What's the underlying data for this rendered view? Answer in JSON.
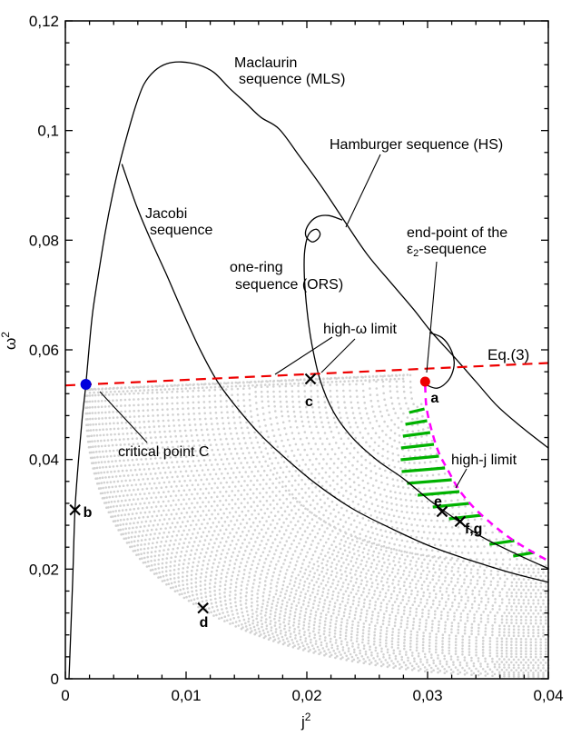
{
  "chart_data": {
    "type": "line",
    "title": "",
    "xlabel": "j",
    "xlabel_sup": "2",
    "ylabel": "ω",
    "ylabel_sup": "2",
    "xlim": [
      0,
      0.04
    ],
    "ylim": [
      0,
      0.12
    ],
    "grid": false,
    "legend_position": "none",
    "decimal_separator": ",",
    "x_ticks": {
      "values": [
        0,
        0.01,
        0.02,
        0.03,
        0.04
      ],
      "labels": [
        "0",
        "0,01",
        "0,02",
        "0,03",
        "0,04"
      ],
      "minor_step": 0.002
    },
    "y_ticks": {
      "values": [
        0,
        0.02,
        0.04,
        0.06,
        0.08,
        0.1,
        0.12
      ],
      "labels": [
        "0",
        "0,02",
        "0,04",
        "0,06",
        "0,08",
        "0,1",
        "0,12"
      ],
      "minor_step": 0.004
    },
    "colors": {
      "black_curves": "#000000",
      "eq3": "#ee0000",
      "high_j": "#ff00ff",
      "hatch": "#00b200",
      "dot_field": "#d2d2d2",
      "critical_point": "#0000dd",
      "end_point": "#ee0000"
    },
    "series": [
      {
        "id": "mls",
        "name": "Maclaurin sequence (MLS)",
        "color": "#000000",
        "style": "solid",
        "points": [
          [
            0.0003,
            0.0
          ],
          [
            0.0006,
            0.0177
          ],
          [
            0.0008,
            0.0308
          ],
          [
            0.0011,
            0.0401
          ],
          [
            0.0014,
            0.0476
          ],
          [
            0.0017,
            0.0537
          ],
          [
            0.002,
            0.0612
          ],
          [
            0.0023,
            0.0675
          ],
          [
            0.0028,
            0.0746
          ],
          [
            0.0033,
            0.0814
          ],
          [
            0.0039,
            0.0882
          ],
          [
            0.0045,
            0.094
          ],
          [
            0.0051,
            0.099
          ],
          [
            0.0058,
            0.1043
          ],
          [
            0.0065,
            0.1084
          ],
          [
            0.0074,
            0.1109
          ],
          [
            0.0084,
            0.1122
          ],
          [
            0.0096,
            0.1125
          ],
          [
            0.011,
            0.112
          ],
          [
            0.0123,
            0.1106
          ],
          [
            0.0136,
            0.1077
          ],
          [
            0.0149,
            0.1051
          ],
          [
            0.0162,
            0.1024
          ],
          [
            0.0177,
            0.1003
          ],
          [
            0.0194,
            0.0953
          ],
          [
            0.0213,
            0.0895
          ],
          [
            0.0232,
            0.0832
          ],
          [
            0.025,
            0.0774
          ],
          [
            0.0269,
            0.0724
          ],
          [
            0.0288,
            0.0675
          ],
          [
            0.0303,
            0.0633
          ],
          [
            0.0322,
            0.0587
          ],
          [
            0.034,
            0.0542
          ],
          [
            0.0358,
            0.0497
          ],
          [
            0.0379,
            0.0457
          ],
          [
            0.04,
            0.0421
          ]
        ]
      },
      {
        "id": "jacobi",
        "name": "Jacobi sequence",
        "color": "#000000",
        "style": "solid",
        "points": [
          [
            0.0047,
            0.0938
          ],
          [
            0.0059,
            0.0862
          ],
          [
            0.007,
            0.0804
          ],
          [
            0.0083,
            0.0741
          ],
          [
            0.0096,
            0.0675
          ],
          [
            0.0111,
            0.0603
          ],
          [
            0.0126,
            0.0542
          ],
          [
            0.0143,
            0.0492
          ],
          [
            0.0162,
            0.0444
          ],
          [
            0.0183,
            0.0401
          ],
          [
            0.0208,
            0.0355
          ],
          [
            0.0238,
            0.031
          ],
          [
            0.0269,
            0.0275
          ],
          [
            0.0302,
            0.0242
          ],
          [
            0.0337,
            0.0215
          ],
          [
            0.0368,
            0.0194
          ],
          [
            0.04,
            0.0176
          ]
        ]
      },
      {
        "id": "ors",
        "name": "one-ring sequence (ORS)",
        "color": "#000000",
        "style": "solid",
        "points": [
          [
            0.0229,
            0.0837
          ],
          [
            0.0218,
            0.0845
          ],
          [
            0.0208,
            0.0842
          ],
          [
            0.0201,
            0.0827
          ],
          [
            0.0199,
            0.0809
          ],
          [
            0.0204,
            0.0797
          ],
          [
            0.0209,
            0.0802
          ],
          [
            0.0211,
            0.0812
          ],
          [
            0.0208,
            0.082
          ],
          [
            0.0203,
            0.0815
          ],
          [
            0.02,
            0.0802
          ],
          [
            0.0198,
            0.0774
          ],
          [
            0.0198,
            0.0733
          ],
          [
            0.02,
            0.0675
          ],
          [
            0.0204,
            0.0612
          ],
          [
            0.0211,
            0.0545
          ],
          [
            0.0222,
            0.0487
          ],
          [
            0.0238,
            0.0439
          ],
          [
            0.0258,
            0.0399
          ],
          [
            0.028,
            0.0365
          ],
          [
            0.0302,
            0.0325
          ],
          [
            0.0322,
            0.0293
          ],
          [
            0.0344,
            0.026
          ],
          [
            0.0372,
            0.0229
          ],
          [
            0.04,
            0.0201
          ]
        ]
      },
      {
        "id": "hs_end_loop",
        "name": "Hamburger sequence (HS) terminal loop",
        "color": "#000000",
        "style": "solid",
        "points": [
          [
            0.0302,
            0.0631
          ],
          [
            0.0312,
            0.0622
          ],
          [
            0.0319,
            0.0602
          ],
          [
            0.0322,
            0.0578
          ],
          [
            0.032,
            0.0555
          ],
          [
            0.0315,
            0.0539
          ],
          [
            0.0308,
            0.053
          ],
          [
            0.0301,
            0.0534
          ],
          [
            0.0298,
            0.054
          ]
        ]
      },
      {
        "id": "eq3",
        "name": "Eq.(3)",
        "color": "#ee0000",
        "style": "dashed",
        "points": [
          [
            0.0,
            0.0535
          ],
          [
            0.04,
            0.0576
          ]
        ]
      },
      {
        "id": "high_j_limit",
        "name": "high-j limit",
        "color": "#ff00ff",
        "style": "dashed",
        "points": [
          [
            0.0298,
            0.0535
          ],
          [
            0.0299,
            0.0496
          ],
          [
            0.0303,
            0.0456
          ],
          [
            0.0309,
            0.0414
          ],
          [
            0.0317,
            0.038
          ],
          [
            0.0326,
            0.0345
          ],
          [
            0.0338,
            0.0313
          ],
          [
            0.0353,
            0.0283
          ],
          [
            0.0368,
            0.0257
          ],
          [
            0.0384,
            0.0235
          ],
          [
            0.04,
            0.0215
          ]
        ]
      }
    ],
    "markers": [
      {
        "id": "C",
        "label": "",
        "name": "critical point C",
        "shape": "dot",
        "color": "#0000dd",
        "x": 0.0017,
        "y": 0.0537
      },
      {
        "id": "a",
        "label": "a",
        "name": "end-point of the ε2-sequence",
        "shape": "dot",
        "color": "#ee0000",
        "x": 0.0298,
        "y": 0.0542
      },
      {
        "id": "b",
        "label": "b",
        "name": "configuration b",
        "shape": "cross",
        "color": "#000000",
        "x": 0.0008,
        "y": 0.0308
      },
      {
        "id": "c",
        "label": "c",
        "name": "configuration c",
        "shape": "cross",
        "color": "#000000",
        "x": 0.0203,
        "y": 0.0547
      },
      {
        "id": "d",
        "label": "d",
        "name": "configuration d",
        "shape": "cross",
        "color": "#000000",
        "x": 0.0114,
        "y": 0.0129
      },
      {
        "id": "e",
        "label": "e",
        "name": "configuration e",
        "shape": "cross",
        "color": "#000000",
        "x": 0.0312,
        "y": 0.0305
      },
      {
        "id": "fg",
        "label": "f,g",
        "name": "configurations f and g",
        "shape": "cross",
        "color": "#000000",
        "x": 0.0327,
        "y": 0.0287
      }
    ],
    "annotations": {
      "maclaurin_l1": "Maclaurin",
      "maclaurin_l2": "sequence (MLS)",
      "hamburger": "Hamburger sequence (HS)",
      "jacobi_l1": "Jacobi",
      "jacobi_l2": "sequence",
      "ors_l1": "one-ring",
      "ors_l2": "sequence (ORS)",
      "endpoint_l1": "end-point of the",
      "endpoint_eps": "ε",
      "endpoint_sub": "2",
      "endpoint_rest": "-sequence",
      "high_w": "high-ω limit",
      "eq3": "Eq.(3)",
      "critical": "critical point C",
      "high_j": "high-j limit"
    }
  }
}
